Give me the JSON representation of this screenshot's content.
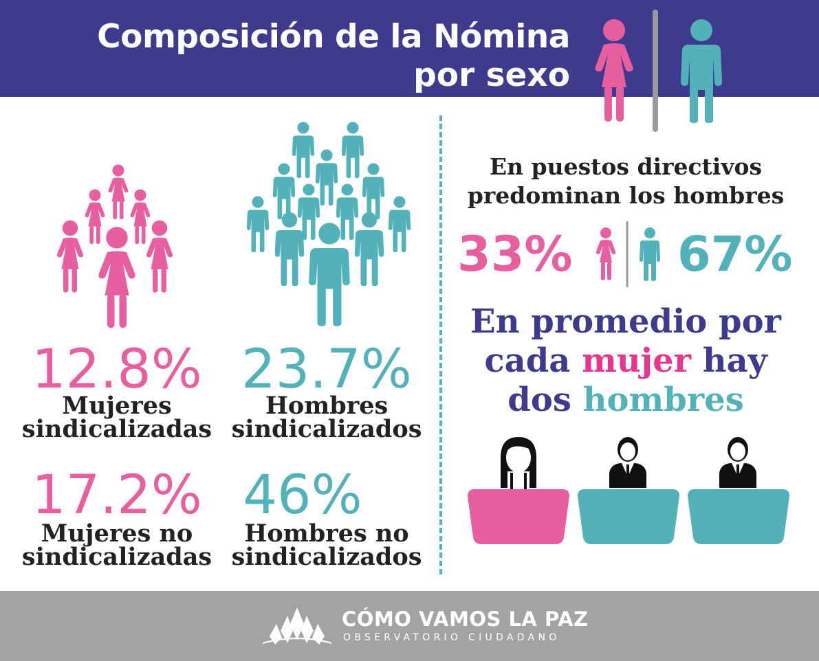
{
  "header": {
    "title_line_1": "Composición de la Nómina",
    "title_line_2": "por sexo"
  },
  "stats": {
    "mujeres_sind": {
      "value": "12.8%",
      "label_line_1": "Mujeres",
      "label_line_2": "sindicalizadas"
    },
    "hombres_sind": {
      "value": "23.7%",
      "label_line_1": "Hombres",
      "label_line_2": "sindicalizados"
    },
    "mujeres_no_sind": {
      "value": "17.2%",
      "label_line_1": "Mujeres no",
      "label_line_2": "sindicalizadas"
    },
    "hombres_no_sind": {
      "value": "46%",
      "label_line_1": "Hombres no",
      "label_line_2": "sindicalizados"
    }
  },
  "directivos": {
    "heading_line_1": "En puestos directivos",
    "heading_line_2": "predominan los hombres",
    "mujeres_pct": "33%",
    "hombres_pct": "67%"
  },
  "promedio": {
    "line_1": "En promedio por",
    "line_2_pre": "cada ",
    "line_2_highlight": "mujer",
    "line_2_post": " hay",
    "line_3_pre": "dos ",
    "line_3_highlight": "hombres"
  },
  "footer": {
    "brand_name": "CÓMO VAMOS LA PAZ",
    "brand_subtitle": "OBSERVATORIO CIUDADANO"
  },
  "colors": {
    "header_bg": "#3e3b8f",
    "pink": "#e85fa0",
    "teal": "#52b1b9",
    "magenta_text": "#e5378e",
    "gray_bar": "#9a9a9a",
    "footer_bg": "#a3a3a3"
  },
  "icons": {
    "header": [
      "woman-icon",
      "man-icon"
    ],
    "women_group": "women-group-icon",
    "men_group": "men-group-icon",
    "desk_figures": [
      "woman-at-desk-icon",
      "man-at-desk-icon",
      "man-at-desk-icon"
    ],
    "footer_logo": "lotus-logo-icon"
  }
}
